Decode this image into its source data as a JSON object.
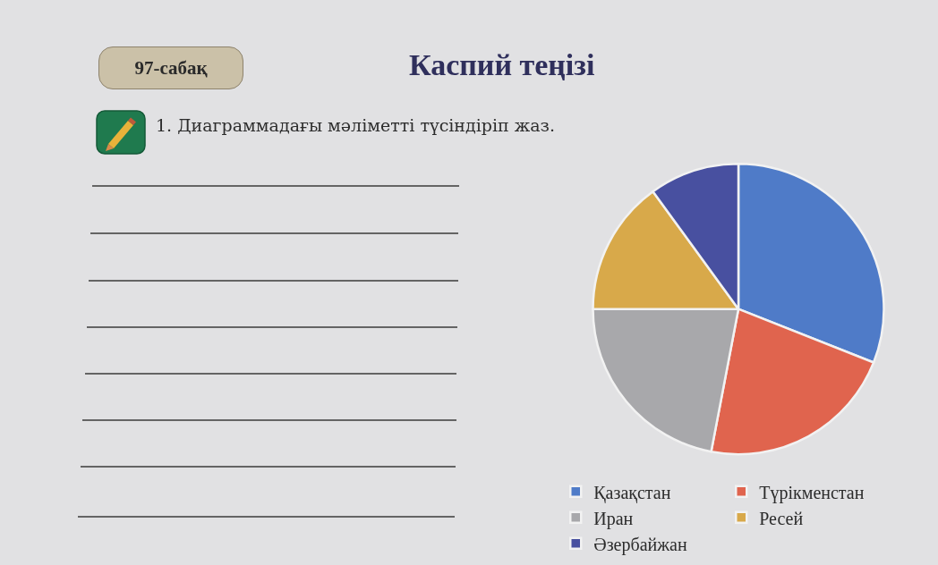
{
  "chart_data": {
    "type": "pie",
    "title": "Каспий теңізі",
    "annotations": [
      "97-сабақ",
      "1. Диаграммадағы мәліметті түсіндіріп жаз."
    ],
    "categories": [
      "Қазақстан",
      "Түрікменстан",
      "Иран",
      "Ресей",
      "Әзербайжан"
    ],
    "values": [
      31,
      22,
      22,
      15,
      10
    ],
    "colors": [
      "#4f7bc8",
      "#e0644e",
      "#a8a8ab",
      "#d8a94a",
      "#4850a0"
    ],
    "legend": "bottom"
  }
}
